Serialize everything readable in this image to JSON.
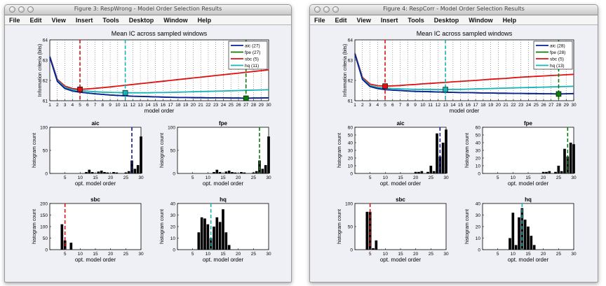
{
  "menu": [
    "File",
    "Edit",
    "View",
    "Insert",
    "Tools",
    "Desktop",
    "Window",
    "Help"
  ],
  "colors": {
    "aic": "#0a1e9c",
    "fpe": "#0a7d0a",
    "sbc": "#e01010",
    "hq": "#18b4b4"
  },
  "windows": [
    {
      "title": "Figure 3: RespWrong - Model Order Selection Results",
      "main": {
        "title": "Mean IC across sampled windows",
        "xlabel": "model order",
        "ylabel": "Information criteria (bits)",
        "xlim": [
          1,
          30
        ],
        "ylim": [
          61,
          64
        ],
        "yticks": [
          61,
          62,
          63,
          64
        ],
        "legend": [
          "aic (27)",
          "fpe (27)",
          "sbc (5)",
          "hq (11)"
        ]
      },
      "histograms": [
        {
          "title": "aic",
          "ylim": [
            0,
            100
          ],
          "yticks": [
            0,
            50,
            100
          ]
        },
        {
          "title": "fpe",
          "ylim": [
            0,
            100
          ],
          "yticks": [
            0,
            50,
            100
          ]
        },
        {
          "title": "sbc",
          "ylim": [
            0,
            200
          ],
          "yticks": [
            0,
            50,
            100,
            150,
            200
          ]
        },
        {
          "title": "hq",
          "ylim": [
            0,
            40
          ],
          "yticks": [
            0,
            10,
            20,
            30,
            40
          ]
        }
      ],
      "hist_xlabel": "opt. model order",
      "hist_ylabel": "histogram count",
      "hist_xticks": [
        5,
        10,
        15,
        20,
        25,
        30
      ]
    },
    {
      "title": "Figure 4: RespCorr - Model Order Selection Results",
      "main": {
        "title": "Mean IC across sampled windows",
        "xlabel": "model order",
        "ylabel": "Information criteria (bits)",
        "xlim": [
          1,
          30
        ],
        "ylim": [
          61,
          64
        ],
        "yticks": [
          61,
          62,
          63,
          64
        ],
        "legend": [
          "aic (28)",
          "fpe (28)",
          "sbc (5)",
          "hq (13)"
        ]
      },
      "histograms": [
        {
          "title": "aic",
          "ylim": [
            0,
            60
          ],
          "yticks": [
            0,
            10,
            20,
            30,
            40,
            50,
            60
          ]
        },
        {
          "title": "fpe",
          "ylim": [
            0,
            60
          ],
          "yticks": [
            0,
            10,
            20,
            30,
            40,
            50,
            60
          ]
        },
        {
          "title": "sbc",
          "ylim": [
            0,
            100
          ],
          "yticks": [
            0,
            50,
            100
          ]
        },
        {
          "title": "hq",
          "ylim": [
            0,
            40
          ],
          "yticks": [
            0,
            10,
            20,
            30,
            40
          ]
        }
      ],
      "hist_xlabel": "opt. model order",
      "hist_ylabel": "histogram count",
      "hist_xticks": [
        5,
        10,
        15,
        20,
        25,
        30
      ]
    }
  ],
  "chart_data": [
    {
      "type": "line",
      "figure": "Figure 3: RespWrong",
      "title": "Mean IC across sampled windows",
      "xlabel": "model order",
      "ylabel": "Information criteria (bits)",
      "x": [
        1,
        2,
        3,
        4,
        5,
        6,
        7,
        8,
        9,
        10,
        11,
        12,
        13,
        14,
        15,
        16,
        17,
        18,
        19,
        20,
        21,
        22,
        23,
        24,
        25,
        26,
        27,
        28,
        29,
        30
      ],
      "xlim": [
        1,
        30
      ],
      "ylim": [
        61,
        64
      ],
      "legend_position": "top-right",
      "series": [
        {
          "name": "aic (27)",
          "color": "#0a1e9c",
          "selected": 27,
          "values": [
            63.15,
            61.95,
            61.6,
            61.48,
            61.42,
            61.38,
            61.34,
            61.31,
            61.28,
            61.26,
            61.24,
            61.22,
            61.21,
            61.2,
            61.19,
            61.18,
            61.17,
            61.16,
            61.16,
            61.15,
            61.15,
            61.14,
            61.14,
            61.14,
            61.13,
            61.13,
            61.12,
            61.13,
            61.13,
            61.14
          ]
        },
        {
          "name": "fpe (27)",
          "color": "#0a7d0a",
          "selected": 27,
          "values": [
            63.15,
            61.95,
            61.6,
            61.48,
            61.42,
            61.38,
            61.34,
            61.31,
            61.28,
            61.26,
            61.24,
            61.22,
            61.21,
            61.2,
            61.19,
            61.18,
            61.17,
            61.16,
            61.16,
            61.15,
            61.15,
            61.14,
            61.14,
            61.14,
            61.13,
            61.13,
            61.12,
            61.13,
            61.13,
            61.14
          ]
        },
        {
          "name": "sbc (5)",
          "color": "#e01010",
          "selected": 5,
          "values": [
            63.2,
            62.05,
            61.72,
            61.6,
            61.56,
            61.58,
            61.61,
            61.64,
            61.68,
            61.72,
            61.76,
            61.8,
            61.84,
            61.88,
            61.92,
            61.96,
            62.0,
            62.04,
            62.08,
            62.12,
            62.16,
            62.2,
            62.24,
            62.28,
            62.32,
            62.36,
            62.4,
            62.44,
            62.48,
            62.52
          ]
        },
        {
          "name": "hq (11)",
          "color": "#18b4b4",
          "selected": 11,
          "values": [
            63.18,
            62.0,
            61.66,
            61.55,
            61.5,
            61.47,
            61.44,
            61.42,
            61.41,
            61.4,
            61.39,
            61.39,
            61.39,
            61.39,
            61.4,
            61.4,
            61.41,
            61.42,
            61.43,
            61.44,
            61.45,
            61.46,
            61.47,
            61.48,
            61.49,
            61.5,
            61.51,
            61.52,
            61.53,
            61.54
          ]
        }
      ]
    },
    {
      "type": "bar",
      "figure": "Figure 3: RespWrong",
      "title": "aic",
      "xlabel": "opt. model order",
      "ylabel": "histogram count",
      "xlim": [
        0,
        30
      ],
      "ylim": [
        0,
        100
      ],
      "selected": 27,
      "selected_color": "#0a1e9c",
      "x": [
        12,
        13,
        14,
        16,
        17,
        18,
        19,
        21,
        22,
        25,
        26,
        27,
        28,
        29,
        30
      ],
      "values": [
        3,
        8,
        3,
        4,
        6,
        3,
        2,
        3,
        2,
        2,
        5,
        28,
        10,
        18,
        80
      ]
    },
    {
      "type": "bar",
      "figure": "Figure 3: RespWrong",
      "title": "fpe",
      "xlabel": "opt. model order",
      "ylabel": "histogram count",
      "xlim": [
        0,
        30
      ],
      "ylim": [
        0,
        100
      ],
      "selected": 27,
      "selected_color": "#0a7d0a",
      "x": [
        12,
        13,
        14,
        16,
        17,
        18,
        19,
        21,
        22,
        25,
        26,
        27,
        28,
        29,
        30
      ],
      "values": [
        3,
        8,
        3,
        4,
        6,
        3,
        2,
        3,
        2,
        2,
        5,
        28,
        10,
        18,
        80
      ]
    },
    {
      "type": "bar",
      "figure": "Figure 3: RespWrong",
      "title": "sbc",
      "xlabel": "opt. model order",
      "ylabel": "histogram count",
      "xlim": [
        0,
        30
      ],
      "ylim": [
        0,
        200
      ],
      "selected": 5,
      "selected_color": "#e01010",
      "x": [
        4,
        5,
        7
      ],
      "values": [
        110,
        40,
        30
      ]
    },
    {
      "type": "bar",
      "figure": "Figure 3: RespWrong",
      "title": "hq",
      "xlabel": "opt. model order",
      "ylabel": "histogram count",
      "xlim": [
        0,
        30
      ],
      "ylim": [
        0,
        40
      ],
      "selected": 11,
      "selected_color": "#18b4b4",
      "x": [
        7,
        8,
        9,
        10,
        11,
        12,
        13,
        14,
        15,
        16,
        17
      ],
      "values": [
        15,
        28,
        27,
        22,
        10,
        20,
        28,
        24,
        35,
        15,
        4
      ]
    },
    {
      "type": "line",
      "figure": "Figure 4: RespCorr",
      "title": "Mean IC across sampled windows",
      "xlabel": "model order",
      "ylabel": "Information criteria (bits)",
      "x": [
        1,
        2,
        3,
        4,
        5,
        6,
        7,
        8,
        9,
        10,
        11,
        12,
        13,
        14,
        15,
        16,
        17,
        18,
        19,
        20,
        21,
        22,
        23,
        24,
        25,
        26,
        27,
        28,
        29,
        30
      ],
      "xlim": [
        1,
        30
      ],
      "ylim": [
        61,
        64
      ],
      "legend_position": "top-right",
      "series": [
        {
          "name": "aic (28)",
          "color": "#0a1e9c",
          "selected": 28,
          "values": [
            63.3,
            62.05,
            61.7,
            61.6,
            61.55,
            61.52,
            61.5,
            61.48,
            61.46,
            61.45,
            61.44,
            61.43,
            61.42,
            61.41,
            61.4,
            61.4,
            61.39,
            61.38,
            61.38,
            61.37,
            61.37,
            61.36,
            61.36,
            61.35,
            61.35,
            61.34,
            61.34,
            61.33,
            61.34,
            61.35
          ]
        },
        {
          "name": "fpe (28)",
          "color": "#0a7d0a",
          "selected": 28,
          "values": [
            63.3,
            62.05,
            61.7,
            61.6,
            61.55,
            61.52,
            61.5,
            61.48,
            61.46,
            61.45,
            61.44,
            61.43,
            61.42,
            61.41,
            61.4,
            61.4,
            61.39,
            61.38,
            61.38,
            61.37,
            61.37,
            61.36,
            61.36,
            61.35,
            61.35,
            61.34,
            61.34,
            61.33,
            61.34,
            61.35
          ]
        },
        {
          "name": "sbc (5)",
          "color": "#e01010",
          "selected": 5,
          "values": [
            63.35,
            62.15,
            61.82,
            61.74,
            61.72,
            61.73,
            61.75,
            61.78,
            61.8,
            61.83,
            61.85,
            61.88,
            61.9,
            61.93,
            61.95,
            61.98,
            62.0,
            62.03,
            62.06,
            62.08,
            62.1,
            62.13,
            62.16,
            62.18,
            62.2,
            62.22,
            62.24,
            62.26,
            62.28,
            62.3
          ]
        },
        {
          "name": "hq (13)",
          "color": "#18b4b4",
          "selected": 13,
          "values": [
            63.32,
            62.1,
            61.75,
            61.66,
            61.62,
            61.6,
            61.58,
            61.57,
            61.56,
            61.56,
            61.56,
            61.55,
            61.55,
            61.56,
            61.56,
            61.57,
            61.58,
            61.59,
            61.6,
            61.61,
            61.62,
            61.63,
            61.64,
            61.65,
            61.66,
            61.67,
            61.68,
            61.69,
            61.7,
            61.71
          ]
        }
      ]
    },
    {
      "type": "bar",
      "figure": "Figure 4: RespCorr",
      "title": "aic",
      "xlabel": "opt. model order",
      "ylabel": "histogram count",
      "xlim": [
        0,
        30
      ],
      "ylim": [
        0,
        60
      ],
      "selected": 28,
      "selected_color": "#0a1e9c",
      "x": [
        20,
        21,
        22,
        24,
        25,
        26,
        27,
        28,
        29,
        30
      ],
      "values": [
        2,
        2,
        3,
        2,
        10,
        3,
        52,
        22,
        40,
        57
      ]
    },
    {
      "type": "bar",
      "figure": "Figure 4: RespCorr",
      "title": "fpe",
      "xlabel": "opt. model order",
      "ylabel": "histogram count",
      "xlim": [
        0,
        30
      ],
      "ylim": [
        0,
        60
      ],
      "selected": 28,
      "selected_color": "#0a7d0a",
      "x": [
        20,
        21,
        22,
        24,
        25,
        26,
        27,
        28,
        29,
        30
      ],
      "values": [
        2,
        2,
        3,
        2,
        10,
        3,
        32,
        22,
        40,
        38
      ]
    },
    {
      "type": "bar",
      "figure": "Figure 4: RespCorr",
      "title": "sbc",
      "xlabel": "opt. model order",
      "ylabel": "histogram count",
      "xlim": [
        0,
        30
      ],
      "ylim": [
        0,
        100
      ],
      "selected": 5,
      "selected_color": "#e01010",
      "x": [
        4,
        5,
        6,
        7
      ],
      "values": [
        82,
        82,
        3,
        20
      ]
    },
    {
      "type": "bar",
      "figure": "Figure 4: RespCorr",
      "title": "hq",
      "xlabel": "opt. model order",
      "ylabel": "histogram count",
      "xlim": [
        0,
        30
      ],
      "ylim": [
        0,
        40
      ],
      "selected": 13,
      "selected_color": "#18b4b4",
      "x": [
        9,
        10,
        11,
        12,
        13,
        14,
        15,
        16,
        17
      ],
      "values": [
        10,
        32,
        4,
        28,
        36,
        26,
        20,
        12,
        4
      ]
    }
  ]
}
